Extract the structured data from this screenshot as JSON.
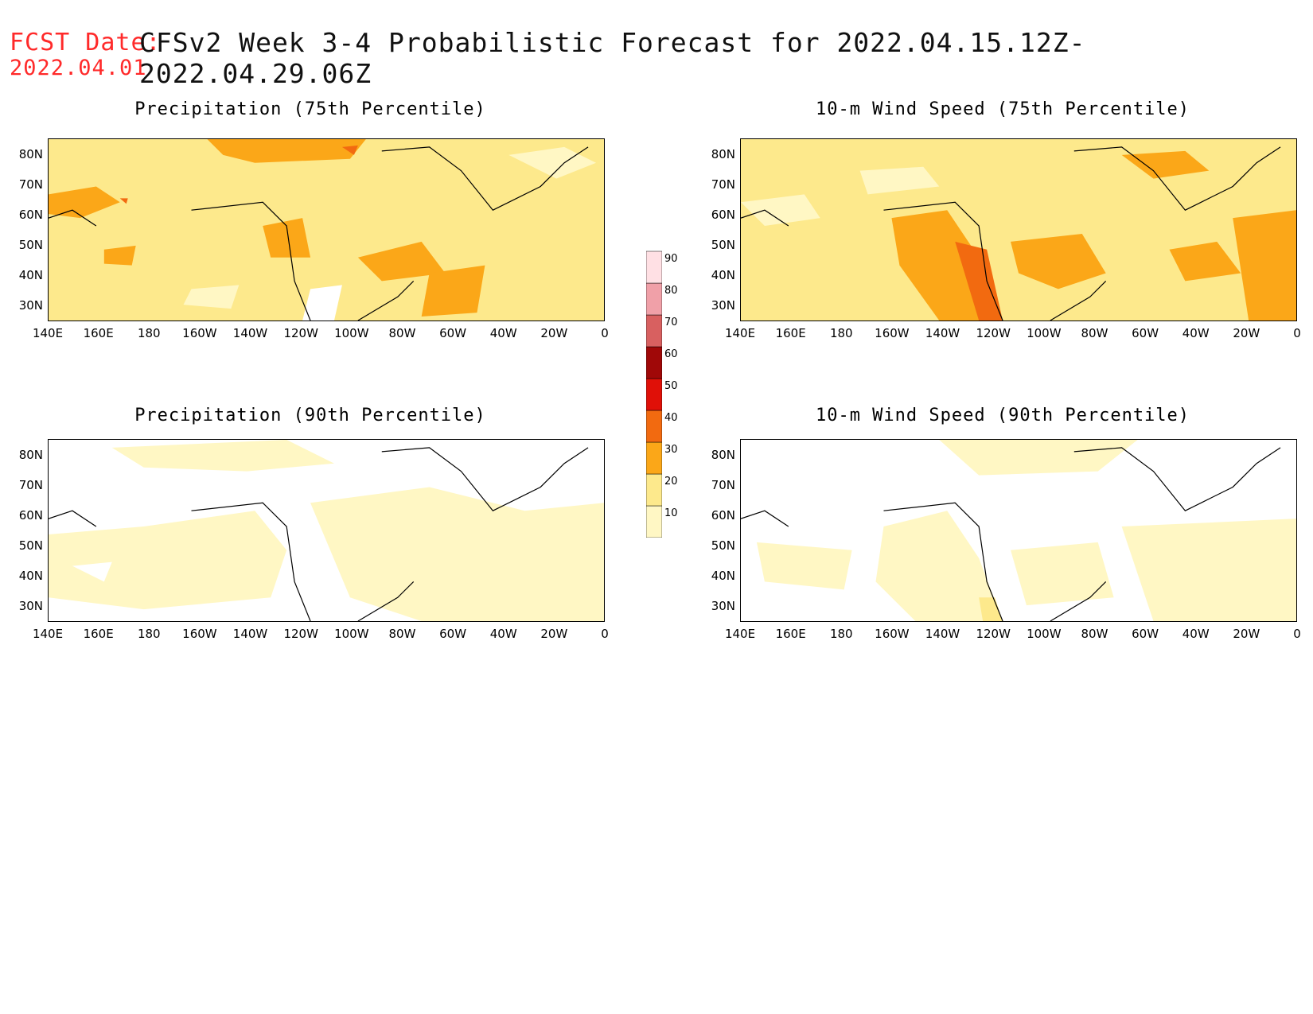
{
  "header": {
    "fcst_label": "FCST Date:",
    "title": "CFSv2 Week 3-4 Probabilistic Forecast for 2022.04.15.12Z-2022.04.29.06Z",
    "fcst_date": "2022.04.01"
  },
  "x_ticks": [
    "140E",
    "160E",
    "180",
    "160W",
    "140W",
    "120W",
    "100W",
    "80W",
    "60W",
    "40W",
    "20W",
    "0"
  ],
  "y_ticks": [
    "80N",
    "70N",
    "60N",
    "50N",
    "40N",
    "30N"
  ],
  "panels": [
    {
      "title": "Precipitation (75th Percentile)",
      "intensity": "high"
    },
    {
      "title": "10-m Wind Speed (75th Percentile)",
      "intensity": "high"
    },
    {
      "title": "Precipitation (90th Percentile)",
      "intensity": "low"
    },
    {
      "title": "10-m Wind Speed (90th Percentile)",
      "intensity": "low"
    }
  ],
  "colorbar": {
    "levels": [
      "10",
      "20",
      "30",
      "40",
      "50",
      "60",
      "70",
      "80",
      "90"
    ],
    "colors": [
      "#fff7c4",
      "#fde98c",
      "#fba718",
      "#f26a10",
      "#e01008",
      "#a00808",
      "#d86060",
      "#f0a0a8",
      "#ffe0e4"
    ],
    "units": "%"
  },
  "colors": {
    "fcst_label": "#ff2a2a",
    "land_outline": "#000000"
  }
}
